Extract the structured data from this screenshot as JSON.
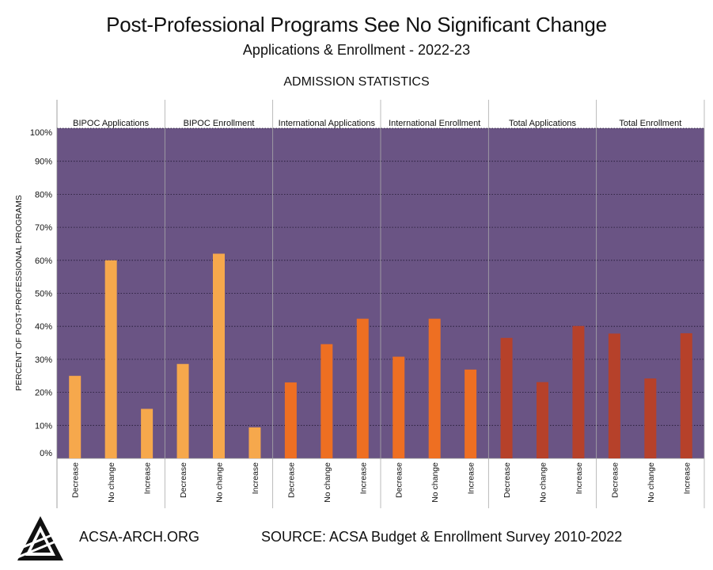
{
  "header": {
    "title": "Post-Professional Programs See No Significant Change",
    "subtitle": "Applications & Enrollment - 2022-23",
    "section_label": "ADMISSION STATISTICS"
  },
  "footer": {
    "site": "ACSA-ARCH.ORG",
    "source": "SOURCE: ACSA Budget & Enrollment Survey 2010-2022",
    "logo_icon": "acsa-triangle-logo-icon"
  },
  "colors": {
    "plot_background": "#6a5484",
    "bipoc": "#f6a84c",
    "international": "#ee6f22",
    "total": "#b6412a"
  },
  "chart_data": {
    "type": "bar",
    "title": "ADMISSION STATISTICS",
    "ylabel": "PERCENT OF POST-PROFESSIONAL PROGRAMS",
    "xlabel": "",
    "ylim": [
      0,
      100
    ],
    "yticks": [
      "0%",
      "10%",
      "20%",
      "30%",
      "40%",
      "50%",
      "60%",
      "70%",
      "80%",
      "90%",
      "100%"
    ],
    "categories": [
      "Decrease",
      "No change",
      "Increase"
    ],
    "grid": true,
    "panels": [
      {
        "name": "BIPOC Applications",
        "color": "#f6a84c",
        "values": [
          25,
          60,
          15
        ]
      },
      {
        "name": "BIPOC Enrollment",
        "color": "#f6a84c",
        "values": [
          28.6,
          62,
          9.4
        ]
      },
      {
        "name": "International Applications",
        "color": "#ee6f22",
        "values": [
          23,
          34.6,
          42.3
        ]
      },
      {
        "name": "International Enrollment",
        "color": "#ee6f22",
        "values": [
          30.8,
          42.3,
          26.9
        ]
      },
      {
        "name": "Total Applications",
        "color": "#b6412a",
        "values": [
          36.5,
          23.1,
          40.1
        ]
      },
      {
        "name": "Total Enrollment",
        "color": "#b6412a",
        "values": [
          37.8,
          24.2,
          37.9
        ]
      }
    ]
  }
}
